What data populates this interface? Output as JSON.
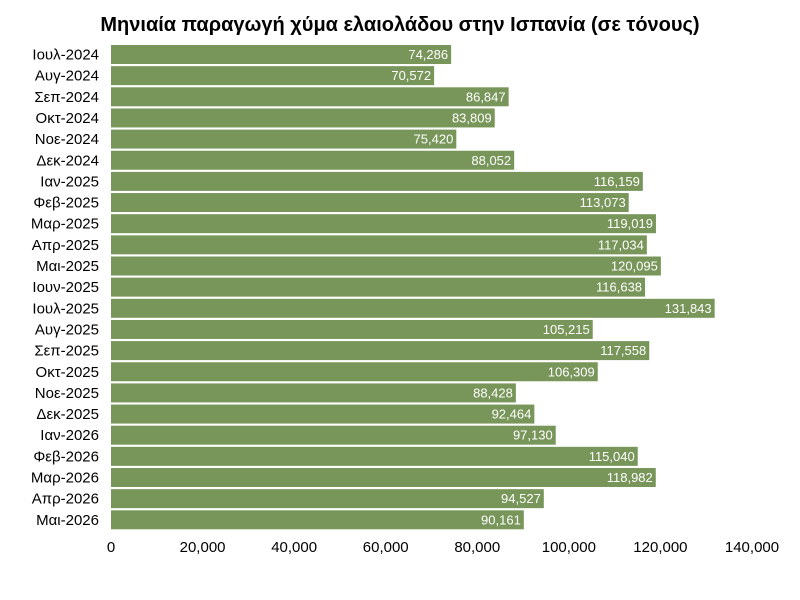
{
  "chart_data": {
    "type": "bar",
    "orientation": "horizontal",
    "title": "Μηνιαία παραγωγή χύμα ελαιολάδου στην Ισπανία (σε τόνους)",
    "categories": [
      "Ιουλ-2024",
      "Αυγ-2024",
      "Σεπ-2024",
      "Οκτ-2024",
      "Νοε-2024",
      "Δεκ-2024",
      "Ιαν-2025",
      "Φεβ-2025",
      "Μαρ-2025",
      "Απρ-2025",
      "Μαι-2025",
      "Ιουν-2025",
      "Ιουλ-2025",
      "Αυγ-2025",
      "Σεπ-2025",
      "Οκτ-2025",
      "Νοε-2025",
      "Δεκ-2025",
      "Ιαν-2026",
      "Φεβ-2026",
      "Μαρ-2026",
      "Απρ-2026",
      "Μαι-2026"
    ],
    "values": [
      74286,
      70572,
      86847,
      83809,
      75420,
      88052,
      116159,
      113073,
      119019,
      117034,
      120095,
      116638,
      131843,
      105215,
      117558,
      106309,
      88428,
      92464,
      97130,
      115040,
      118982,
      94527,
      90161
    ],
    "value_labels": [
      "74,286",
      "70,572",
      "86,847",
      "83,809",
      "75,420",
      "88,052",
      "116,159",
      "113,073",
      "119,019",
      "117,034",
      "120,095",
      "116,638",
      "131,843",
      "105,215",
      "117,558",
      "106,309",
      "88,428",
      "92,464",
      "97,130",
      "115,040",
      "118,982",
      "94,527",
      "90,161"
    ],
    "x_ticks": [
      0,
      20000,
      40000,
      60000,
      80000,
      100000,
      120000,
      140000
    ],
    "x_tick_labels": [
      "0",
      "20,000",
      "40,000",
      "60,000",
      "80,000",
      "100,000",
      "120,000",
      "140,000"
    ],
    "xlim": [
      0,
      140000
    ],
    "xlabel": "",
    "ylabel": "",
    "grid": false,
    "bar_color": "#78965a",
    "label_color": "#ffffff"
  }
}
